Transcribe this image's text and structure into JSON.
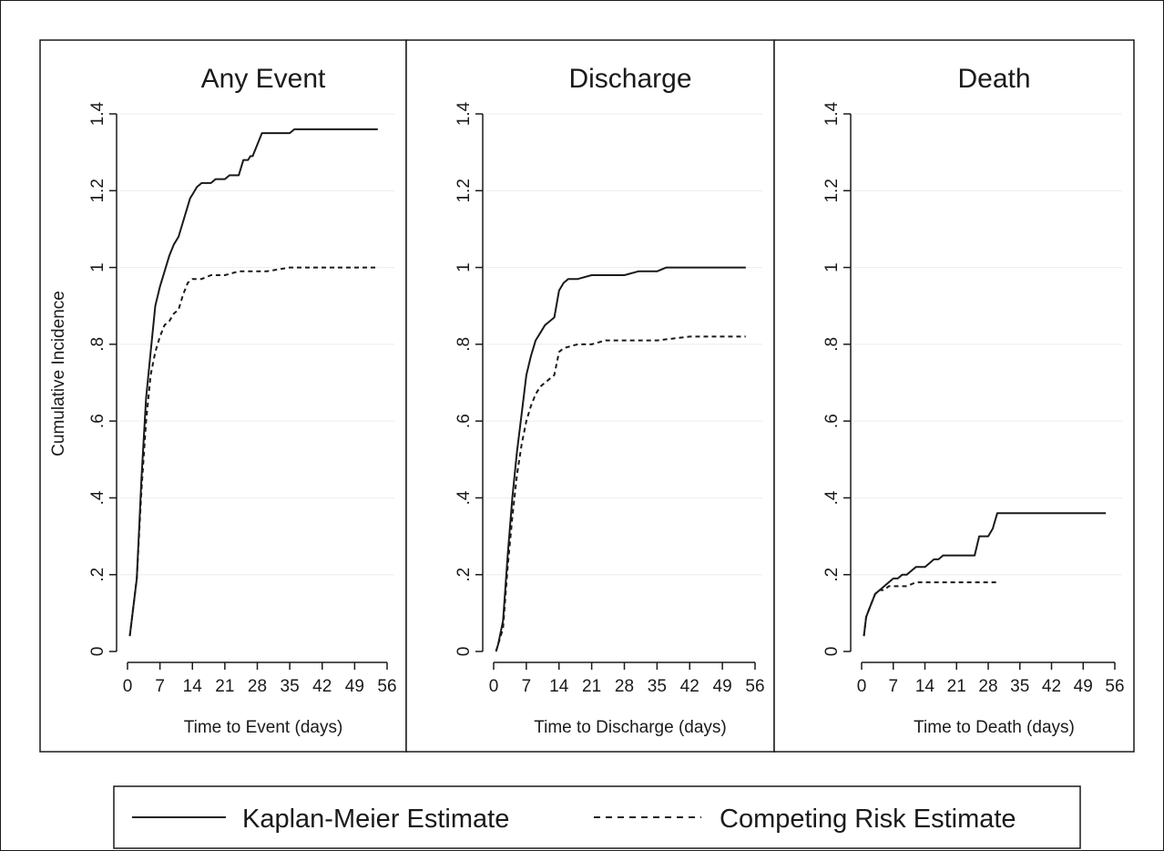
{
  "colors": {
    "line": "#1a1a1a",
    "grid": "#ececec",
    "background": "#ffffff"
  },
  "shared": {
    "ylabel": "Cumulative Incidence",
    "yticks": [
      0,
      0.2,
      0.4,
      0.6,
      0.8,
      1,
      1.2,
      1.4
    ],
    "ytick_labels": [
      "0",
      ".2",
      ".4",
      ".6",
      ".8",
      "1",
      "1.2",
      "1.4"
    ],
    "xticks": [
      0,
      7,
      14,
      21,
      28,
      35,
      42,
      49,
      56
    ],
    "xtick_labels": [
      "0",
      "7",
      "14",
      "21",
      "28",
      "35",
      "42",
      "49",
      "56"
    ]
  },
  "legend": {
    "items": [
      {
        "label": "Kaplan-Meier Estimate",
        "style": "solid"
      },
      {
        "label": "Competing Risk Estimate",
        "style": "dashed"
      }
    ]
  },
  "chart_data": [
    {
      "type": "line",
      "title": "Any Event",
      "xlabel": "Time to Event (days)",
      "ylabel": "Cumulative Incidence",
      "xlim": [
        0,
        56
      ],
      "ylim": [
        0,
        1.4
      ],
      "grid": true,
      "series": [
        {
          "name": "Kaplan-Meier Estimate",
          "style": "solid",
          "x": [
            0.5,
            2,
            3,
            4,
            5,
            6,
            7,
            8,
            9,
            10,
            11,
            12,
            13,
            13.5,
            14,
            15,
            16,
            17,
            18,
            19,
            21,
            22,
            23,
            24,
            25,
            26,
            26.5,
            27,
            28,
            29,
            30,
            31,
            32,
            33,
            35,
            36,
            40,
            45,
            54
          ],
          "y": [
            0.04,
            0.19,
            0.45,
            0.66,
            0.78,
            0.9,
            0.95,
            0.99,
            1.03,
            1.06,
            1.08,
            1.12,
            1.16,
            1.18,
            1.19,
            1.21,
            1.22,
            1.22,
            1.22,
            1.23,
            1.23,
            1.24,
            1.24,
            1.24,
            1.28,
            1.28,
            1.29,
            1.29,
            1.32,
            1.35,
            1.35,
            1.35,
            1.35,
            1.35,
            1.35,
            1.36,
            1.36,
            1.36,
            1.36
          ]
        },
        {
          "name": "Competing Risk Estimate",
          "style": "dashed",
          "x": [
            0.5,
            2,
            3,
            4,
            5,
            6,
            7,
            8,
            9,
            10,
            11,
            12,
            13,
            14,
            15,
            16,
            18,
            21,
            24,
            27,
            30,
            35,
            40,
            45,
            50,
            54
          ],
          "y": [
            0.04,
            0.19,
            0.42,
            0.6,
            0.72,
            0.78,
            0.82,
            0.85,
            0.86,
            0.88,
            0.89,
            0.93,
            0.96,
            0.97,
            0.97,
            0.97,
            0.98,
            0.98,
            0.99,
            0.99,
            0.99,
            1.0,
            1.0,
            1.0,
            1.0,
            1.0
          ]
        }
      ]
    },
    {
      "type": "line",
      "title": "Discharge",
      "xlabel": "Time to Discharge (days)",
      "ylabel": "",
      "xlim": [
        0,
        56
      ],
      "ylim": [
        0,
        1.4
      ],
      "grid": true,
      "series": [
        {
          "name": "Kaplan-Meier Estimate",
          "style": "solid",
          "x": [
            0.5,
            1,
            2,
            3,
            4,
            5,
            6,
            7,
            8,
            9,
            10,
            11,
            12,
            13,
            14,
            15,
            16,
            18,
            21,
            24,
            28,
            31,
            35,
            37,
            42,
            49,
            54
          ],
          "y": [
            0.0,
            0.02,
            0.08,
            0.25,
            0.4,
            0.52,
            0.62,
            0.72,
            0.77,
            0.81,
            0.83,
            0.85,
            0.86,
            0.87,
            0.94,
            0.96,
            0.97,
            0.97,
            0.98,
            0.98,
            0.98,
            0.99,
            0.99,
            1.0,
            1.0,
            1.0,
            1.0
          ]
        },
        {
          "name": "Competing Risk Estimate",
          "style": "dashed",
          "x": [
            0.5,
            1,
            2,
            3,
            4,
            5,
            6,
            7,
            8,
            9,
            10,
            11,
            12,
            13,
            14,
            15,
            18,
            21,
            24,
            28,
            35,
            42,
            49,
            54
          ],
          "y": [
            0.0,
            0.02,
            0.06,
            0.22,
            0.35,
            0.46,
            0.54,
            0.6,
            0.64,
            0.67,
            0.69,
            0.7,
            0.71,
            0.72,
            0.78,
            0.79,
            0.8,
            0.8,
            0.81,
            0.81,
            0.81,
            0.82,
            0.82,
            0.82
          ]
        }
      ]
    },
    {
      "type": "line",
      "title": "Death",
      "xlabel": "Time to Death (days)",
      "ylabel": "",
      "xlim": [
        0,
        56
      ],
      "ylim": [
        0,
        1.4
      ],
      "grid": true,
      "series": [
        {
          "name": "Kaplan-Meier Estimate",
          "style": "solid",
          "x": [
            0.5,
            1,
            2,
            3,
            4,
            5,
            6,
            7,
            8,
            9,
            10,
            11,
            12,
            14,
            15,
            16,
            17,
            18,
            21,
            24,
            25,
            26,
            27,
            28,
            29,
            30,
            31,
            35,
            42,
            49,
            54
          ],
          "y": [
            0.04,
            0.09,
            0.12,
            0.15,
            0.16,
            0.17,
            0.18,
            0.19,
            0.19,
            0.2,
            0.2,
            0.21,
            0.22,
            0.22,
            0.23,
            0.24,
            0.24,
            0.25,
            0.25,
            0.25,
            0.25,
            0.3,
            0.3,
            0.3,
            0.32,
            0.36,
            0.36,
            0.36,
            0.36,
            0.36,
            0.36
          ]
        },
        {
          "name": "Competing Risk Estimate",
          "style": "dashed",
          "x": [
            0.5,
            1,
            2,
            3,
            4,
            5,
            6,
            7,
            8,
            10,
            12,
            14,
            16,
            18,
            21,
            24,
            27,
            30
          ],
          "y": [
            0.04,
            0.09,
            0.12,
            0.15,
            0.16,
            0.16,
            0.17,
            0.17,
            0.17,
            0.17,
            0.18,
            0.18,
            0.18,
            0.18,
            0.18,
            0.18,
            0.18,
            0.18
          ]
        }
      ]
    }
  ]
}
